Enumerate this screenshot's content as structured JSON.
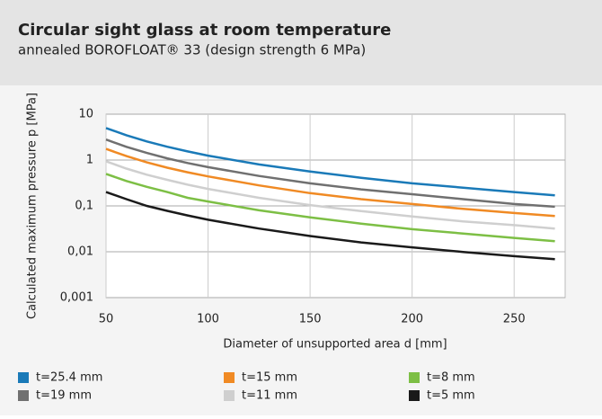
{
  "chart_data": {
    "type": "line",
    "title": "Circular sight glass at room temperature",
    "subtitle": "annealed BOROFLOAT® 33 (design strength 6 MPa)",
    "x_label": "Diameter of unsupported area d [mm]",
    "y_label": "Calculated maximum pressure p [MPa]",
    "x": [
      50,
      60,
      70,
      80,
      90,
      100,
      125,
      150,
      175,
      200,
      225,
      250,
      270
    ],
    "series": [
      {
        "name": "t=25.4 mm",
        "color": "#1a7ab8",
        "values": [
          5,
          3.47,
          2.55,
          1.95,
          1.54,
          1.25,
          0.8,
          0.56,
          0.41,
          0.31,
          0.25,
          0.2,
          0.17
        ]
      },
      {
        "name": "t=19 mm",
        "color": "#707070",
        "values": [
          2.8,
          1.94,
          1.43,
          1.09,
          0.86,
          0.7,
          0.45,
          0.31,
          0.23,
          0.18,
          0.14,
          0.11,
          0.096
        ]
      },
      {
        "name": "t=15 mm",
        "color": "#f08a24",
        "values": [
          1.75,
          1.22,
          0.89,
          0.68,
          0.54,
          0.44,
          0.28,
          0.19,
          0.14,
          0.11,
          0.086,
          0.07,
          0.06
        ]
      },
      {
        "name": "t=11 mm",
        "color": "#cfcfcf",
        "values": [
          0.94,
          0.65,
          0.48,
          0.37,
          0.29,
          0.235,
          0.15,
          0.104,
          0.077,
          0.059,
          0.046,
          0.038,
          0.032
        ]
      },
      {
        "name": "t=8 mm",
        "color": "#7dbf45",
        "values": [
          0.5,
          0.35,
          0.26,
          0.2,
          0.15,
          0.125,
          0.08,
          0.056,
          0.041,
          0.031,
          0.025,
          0.02,
          0.017
        ]
      },
      {
        "name": "t=5 mm",
        "color": "#1a1a1a",
        "values": [
          0.2,
          0.14,
          0.1,
          0.078,
          0.062,
          0.05,
          0.032,
          0.022,
          0.016,
          0.0125,
          0.0099,
          0.008,
          0.0069
        ]
      }
    ],
    "xlim": [
      50,
      275
    ],
    "xticks": [
      50,
      100,
      150,
      200,
      250
    ],
    "ylim": [
      0.001,
      10
    ],
    "yticks": [
      {
        "value": 0.001,
        "label": "0,001"
      },
      {
        "value": 0.01,
        "label": "0,01"
      },
      {
        "value": 0.1,
        "label": "0,1"
      },
      1,
      10
    ],
    "y_scale": "log",
    "grid": true
  }
}
